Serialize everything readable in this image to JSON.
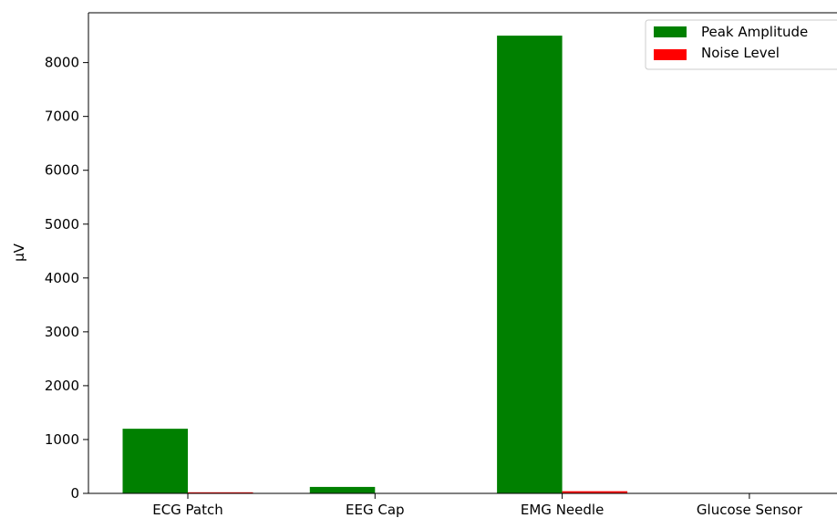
{
  "chart_data": {
    "type": "bar",
    "title": "",
    "xlabel": "",
    "ylabel": "µV",
    "categories": [
      "ECG Patch",
      "EEG Cap",
      "EMG Needle",
      "Glucose Sensor"
    ],
    "series": [
      {
        "name": "Peak Amplitude",
        "color": "#008000",
        "values": [
          1200,
          120,
          8500,
          0
        ]
      },
      {
        "name": "Noise Level",
        "color": "#ff0000",
        "values": [
          20,
          5,
          40,
          0
        ]
      }
    ],
    "ylim": [
      0,
      8925
    ],
    "yticks": [
      0,
      1000,
      2000,
      3000,
      4000,
      5000,
      6000,
      7000,
      8000
    ],
    "grid": false,
    "legend_position": "top-right"
  }
}
